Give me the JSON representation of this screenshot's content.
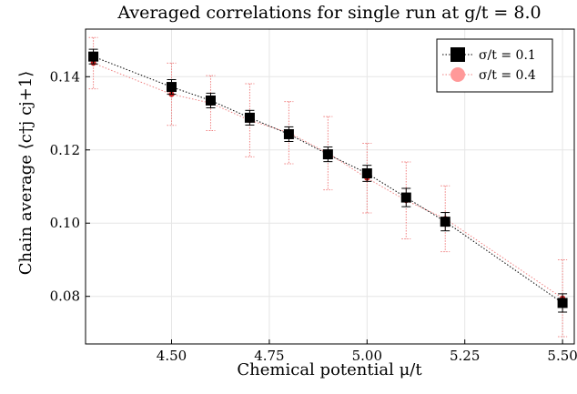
{
  "chart_data": {
    "type": "scatter",
    "title": "Averaged correlations for single run at g/t = 8.0",
    "xlabel": "Chemical potential μ/t",
    "ylabel": "Chain average ⟨c†j cj+1⟩",
    "xlim": [
      4.28,
      5.53
    ],
    "ylim": [
      0.067,
      0.153
    ],
    "x_ticks": [
      4.5,
      4.75,
      5.0,
      5.25,
      5.5
    ],
    "x_tick_labels": [
      "4.50",
      "4.75",
      "5.00",
      "5.25",
      "5.50"
    ],
    "y_ticks": [
      0.08,
      0.1,
      0.12,
      0.14
    ],
    "y_tick_labels": [
      "0.08",
      "0.10",
      "0.12",
      "0.14"
    ],
    "grid": true,
    "legend_position": "top-right",
    "series": [
      {
        "name": "σ/t = 0.1",
        "color": "#000000",
        "marker": "square",
        "x": [
          4.3,
          4.5,
          4.6,
          4.7,
          4.8,
          4.9,
          5.0,
          5.1,
          5.2,
          5.5
        ],
        "y": [
          0.1455,
          0.1372,
          0.1335,
          0.1288,
          0.1243,
          0.1188,
          0.1136,
          0.107,
          0.1004,
          0.0782
        ],
        "err": [
          0.002,
          0.002,
          0.002,
          0.002,
          0.002,
          0.002,
          0.0022,
          0.0025,
          0.0025,
          0.0025
        ]
      },
      {
        "name": "σ/t = 0.4",
        "color": "#f08080",
        "marker": "circle",
        "x": [
          4.3,
          4.5,
          4.6,
          4.7,
          4.8,
          4.9,
          5.0,
          5.1,
          5.2,
          5.5
        ],
        "y": [
          0.1437,
          0.1352,
          0.1328,
          0.1281,
          0.1247,
          0.1191,
          0.1123,
          0.1062,
          0.1012,
          0.0795
        ],
        "err": [
          0.007,
          0.0085,
          0.0075,
          0.01,
          0.0085,
          0.01,
          0.0095,
          0.0105,
          0.009,
          0.0105
        ]
      }
    ]
  }
}
